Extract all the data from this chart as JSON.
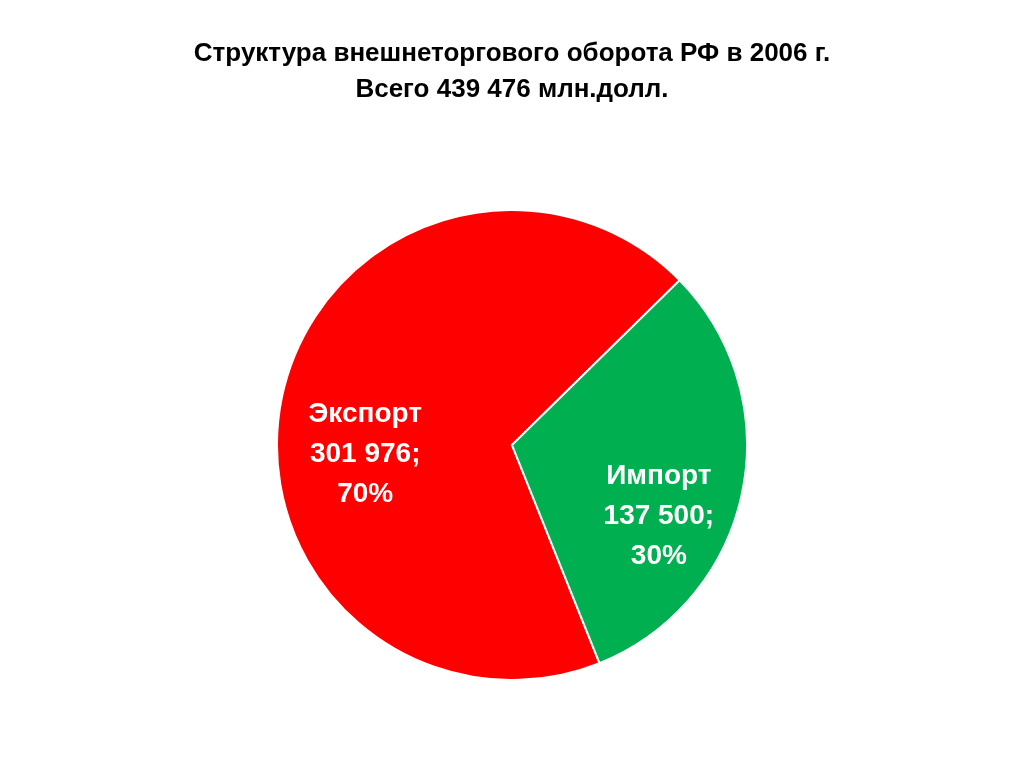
{
  "chart_data": {
    "type": "pie",
    "title": "Структура внешнеторгового оборота РФ в  2006 г.",
    "subtitle": "Всего 439 476 млн.долл.",
    "categories": [
      "Экспорт",
      "Импорт"
    ],
    "values": [
      301976,
      137500
    ],
    "colors": [
      "#ff0000",
      "#00b050"
    ],
    "value_labels": [
      "301 976;\n70%",
      "137 500;\n30%"
    ]
  }
}
